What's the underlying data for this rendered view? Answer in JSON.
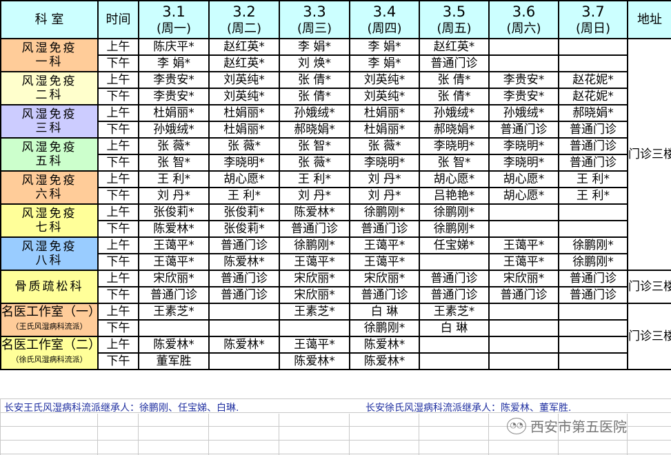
{
  "header": {
    "dept_label": "科 室",
    "time_label": "时间",
    "address_label": "地址",
    "days": [
      {
        "date": "3.1",
        "weekday": "(周一)"
      },
      {
        "date": "3.2",
        "weekday": "(周二)"
      },
      {
        "date": "3.3",
        "weekday": "(周三)"
      },
      {
        "date": "3.4",
        "weekday": "(周四)"
      },
      {
        "date": "3.5",
        "weekday": "(周五)"
      },
      {
        "date": "3.6",
        "weekday": "(周六)"
      },
      {
        "date": "3.7",
        "weekday": "(周日)"
      }
    ]
  },
  "departments": [
    {
      "line1": "风湿免疫",
      "line2": "一科",
      "color": "#ffcc99",
      "rows": [
        {
          "time": "上午",
          "cells": [
            "陈庆平*",
            "赵红英*",
            "李 娟*",
            "李 娟*",
            "赵红英*",
            "",
            ""
          ]
        },
        {
          "time": "下午",
          "cells": [
            "李 娟*",
            "赵红英*",
            "刘 焕*",
            "李 娟*",
            "普通门诊",
            "",
            ""
          ]
        }
      ]
    },
    {
      "line1": "风湿免疫",
      "line2": "二科",
      "color": "#ffffcc",
      "rows": [
        {
          "time": "上午",
          "cells": [
            "李贵安*",
            "刘英纯*",
            "张 倩*",
            "刘英纯*",
            "张 倩*",
            "李贵安*",
            "赵花妮*"
          ]
        },
        {
          "time": "下午",
          "cells": [
            "李贵安*",
            "刘英纯*",
            "张 倩*",
            "刘英纯*",
            "张 倩*",
            "李贵安*",
            "赵花妮*"
          ]
        }
      ]
    },
    {
      "line1": "风湿免疫",
      "line2": "三科",
      "color": "#ccccff",
      "rows": [
        {
          "time": "上午",
          "cells": [
            "杜娟丽*",
            "杜娟丽*",
            "孙娥绒*",
            "杜娟丽*",
            "孙娥绒*",
            "孙娥绒*",
            "郝晓娟*"
          ]
        },
        {
          "time": "下午",
          "cells": [
            "孙娥绒*",
            "杜娟丽*",
            "郝晓娟*",
            "杜娟丽*",
            "郝晓娟*",
            "普通门诊",
            "普通门诊"
          ]
        }
      ]
    },
    {
      "line1": "风湿免疫",
      "line2": "五科",
      "color": "#ccffcc",
      "rows": [
        {
          "time": "上午",
          "cells": [
            "张 薇*",
            "张 薇*",
            "张 智*",
            "张 薇*",
            "李晓明*",
            "李晓明*",
            "普通门诊"
          ]
        },
        {
          "time": "下午",
          "cells": [
            "张 智*",
            "李晓明*",
            "张 薇*",
            "李晓明*",
            "张 智*",
            "李晓明*",
            "普通门诊"
          ]
        }
      ]
    },
    {
      "line1": "风湿免疫",
      "line2": "六科",
      "color": "#ffcc99",
      "rows": [
        {
          "time": "上午",
          "cells": [
            "王 利*",
            "胡心愿*",
            "王 利*",
            "刘 丹*",
            "胡心愿*",
            "胡心愿*",
            "王 利*"
          ]
        },
        {
          "time": "下午",
          "cells": [
            "刘 丹*",
            "王 利*",
            "刘 丹*",
            "刘 丹*",
            "吕艳艳*",
            "胡心愿*",
            "王 利*"
          ]
        }
      ]
    },
    {
      "line1": "风湿免疫",
      "line2": "七科",
      "color": "#ffff99",
      "rows": [
        {
          "time": "上午",
          "cells": [
            "张俊莉*",
            "张俊莉*",
            "陈爱林*",
            "徐鹏刚*",
            "徐鹏刚*",
            "",
            ""
          ]
        },
        {
          "time": "下午",
          "cells": [
            "陈爱林*",
            "张俊莉*",
            "普通门诊",
            "普通门诊",
            "徐鹏刚*",
            "",
            ""
          ]
        }
      ]
    },
    {
      "line1": "风湿免疫",
      "line2": "八科",
      "color": "#99ccff",
      "rows": [
        {
          "time": "上午",
          "cells": [
            "王蔼平*",
            "普通门诊",
            "徐鹏刚*",
            "王蔼平*",
            "任宝娣*",
            "王蔼平*",
            "徐鹏刚*"
          ]
        },
        {
          "time": "下午",
          "cells": [
            "王蔼平*",
            "陈爱林*",
            "王蔼平*",
            "王蔼平*",
            "",
            "王蔼平*",
            "徐鹏刚*"
          ]
        }
      ]
    },
    {
      "line1": "骨质疏松科",
      "line2": "",
      "color": "#ffff99",
      "rows": [
        {
          "time": "上午",
          "cells": [
            "宋欣丽*",
            "普通门诊",
            "宋欣丽*",
            "宋欣丽*",
            "普通门诊",
            "宋欣丽*",
            "普通门诊"
          ]
        },
        {
          "time": "下午",
          "cells": [
            "普通门诊",
            "普通门诊",
            "宋欣丽*",
            "普通门诊",
            "普通门诊",
            "普通门诊",
            "普通门诊"
          ]
        }
      ]
    },
    {
      "line1": "名医工作室（一）",
      "line2": "（王氏风湿病科流派）",
      "color": "#ffcc99",
      "rows": [
        {
          "time": "上午",
          "cells": [
            "王素芝*",
            "",
            "王素芝*",
            "白 琳",
            "王素芝*",
            "",
            ""
          ]
        },
        {
          "time": "下午",
          "cells": [
            "",
            "",
            "",
            "徐鹏刚*",
            "白 琳",
            "",
            ""
          ]
        }
      ]
    },
    {
      "line1": "名医工作室（二）",
      "line2": "（徐氏风湿病科流派）",
      "color": "#ffff99",
      "rows": [
        {
          "time": "上午",
          "cells": [
            "陈爱林*",
            "陈爱林*",
            "王蔼平*",
            "陈爱林*",
            "",
            "",
            ""
          ]
        },
        {
          "time": "下午",
          "cells": [
            "董军胜",
            "",
            "陈爱林*",
            "陈爱林*",
            "",
            "",
            ""
          ]
        }
      ]
    }
  ],
  "addresses": [
    {
      "text": "门诊三楼东侧",
      "from_dept": 0,
      "dept_count": 7
    },
    {
      "text": "门诊三楼南侧",
      "from_dept": 7,
      "dept_count": 1
    },
    {
      "text": "门诊三楼北侧",
      "from_dept": 8,
      "dept_count": 2
    }
  ],
  "footer": {
    "left": "长安王氏风湿病科流派继承人：徐鹏刚、任宝娣、白琳.",
    "right": "长安徐氏风湿病科流派继承人：陈爱林、董军胜."
  },
  "watermark": "西安市第五医院"
}
